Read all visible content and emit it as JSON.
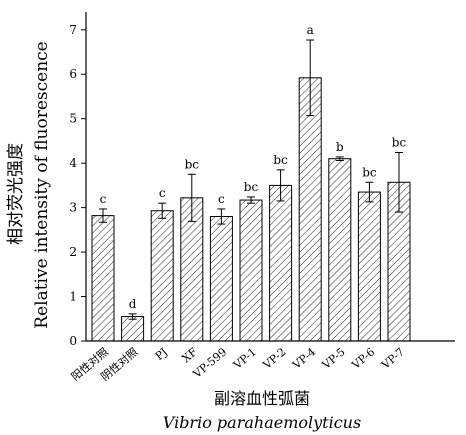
{
  "chart_data": {
    "type": "bar",
    "categories": [
      "阳性对照",
      "阴性对照",
      "PJ",
      "XF",
      "VP-599",
      "VP-1",
      "VP-2",
      "VP-4",
      "VP-5",
      "VP-6",
      "VP-7"
    ],
    "values": [
      2.82,
      0.55,
      2.93,
      3.22,
      2.8,
      3.17,
      3.5,
      5.92,
      4.1,
      3.35,
      3.57
    ],
    "errors": [
      0.15,
      0.06,
      0.17,
      0.53,
      0.17,
      0.07,
      0.35,
      0.85,
      0.04,
      0.22,
      0.67
    ],
    "significance_letters": [
      "c",
      "d",
      "c",
      "bc",
      "c",
      "bc",
      "bc",
      "a",
      "b",
      "bc",
      "bc"
    ],
    "ylabel_cn": "相对荧光强度",
    "ylabel_en": "Relative intensity of fluorescence",
    "xlabel_cn": "副溶血性弧菌",
    "xlabel_en": "Vibrio parahaemolyticus",
    "ylim": [
      0,
      7.4
    ],
    "yticks": [
      0,
      1,
      2,
      3,
      4,
      5,
      6,
      7
    ],
    "bar_pattern": "diagonal-hatch",
    "grid": false,
    "legend": "none"
  }
}
